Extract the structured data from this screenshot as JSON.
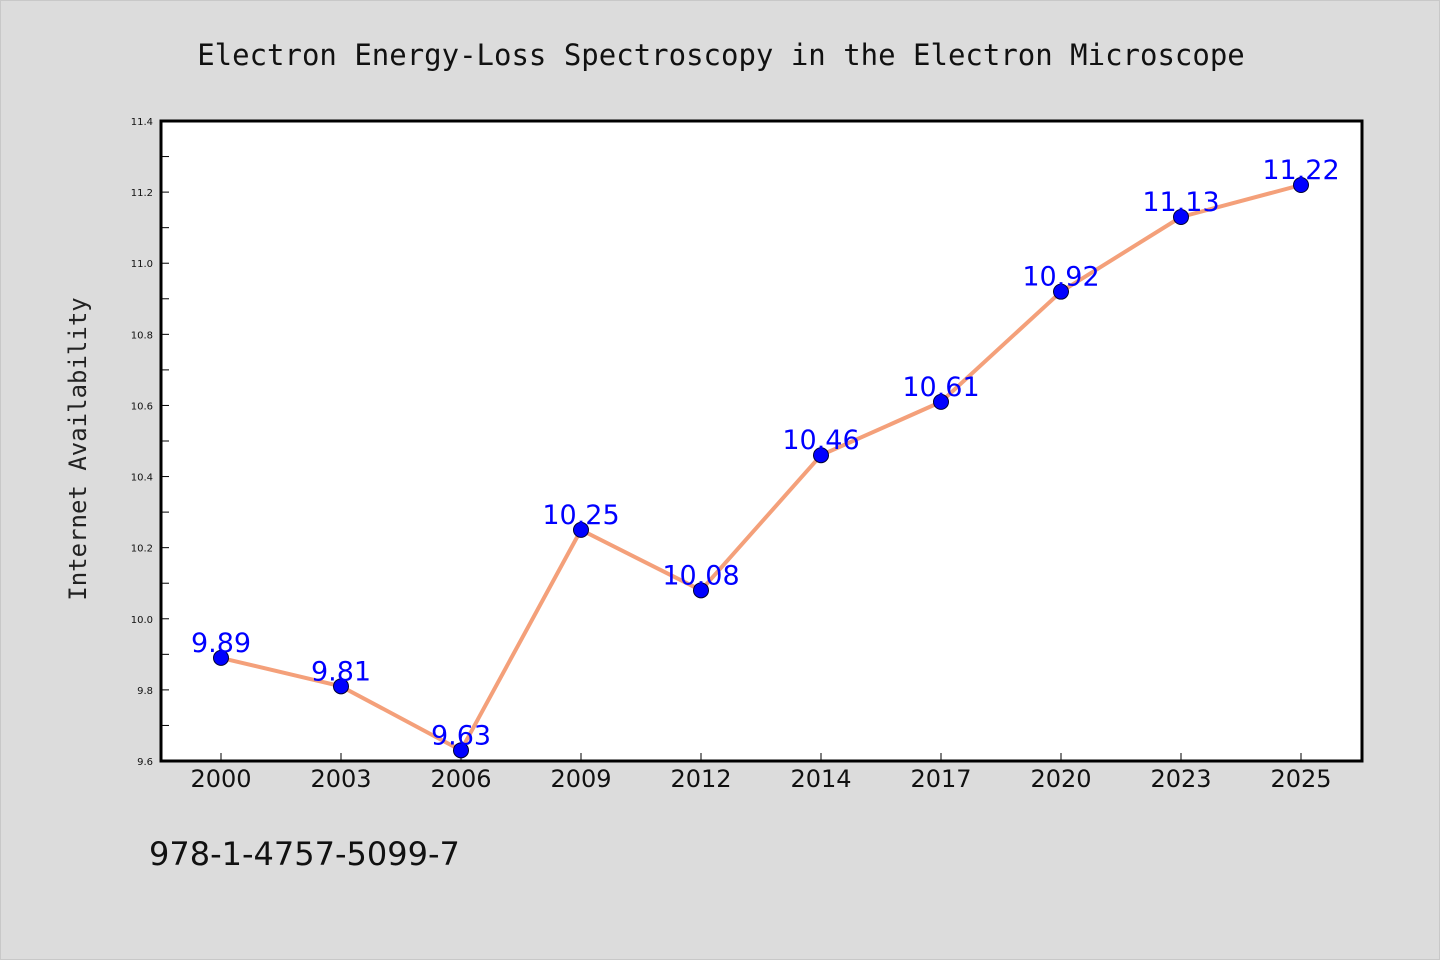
{
  "chart_data": {
    "type": "line",
    "title": "Electron Energy-Loss Spectroscopy in the Electron Microscope",
    "xlabel": "",
    "ylabel": "Internet Availability",
    "categories": [
      "2000",
      "2003",
      "2006",
      "2009",
      "2012",
      "2014",
      "2017",
      "2020",
      "2023",
      "2025"
    ],
    "series": [
      {
        "values": [
          9.89,
          9.81,
          9.63,
          10.25,
          10.08,
          10.46,
          10.61,
          10.92,
          11.13,
          11.22
        ],
        "data_labels": [
          "9.89",
          "9.81",
          "9.63",
          "10.25",
          "10.08",
          "10.46",
          "10.61",
          "10.92",
          "11.13",
          "11.22"
        ]
      }
    ],
    "ylim": [
      9.6,
      11.4
    ],
    "yticks": [
      "9.6",
      "9.8",
      "10.0",
      "10.2",
      "10.4",
      "10.6",
      "10.8",
      "11.0",
      "11.2",
      "11.4"
    ],
    "grid": false,
    "colors": {
      "line": "#f4a07a",
      "marker": "#0000ff",
      "data_label": "#0000ff",
      "background": "#dcdcdc",
      "plot_area": "#ffffff"
    }
  },
  "footer": {
    "isbn": "978-1-4757-5099-7"
  }
}
